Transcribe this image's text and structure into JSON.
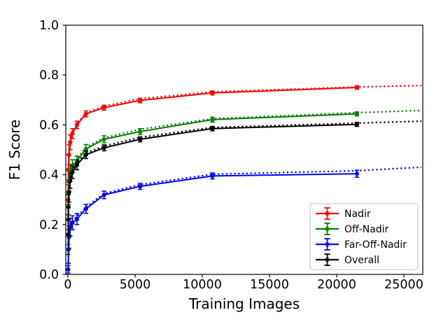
{
  "chart_data": {
    "type": "line",
    "title": "",
    "xlabel": "Training Images",
    "ylabel": "F1 Score",
    "grid": false,
    "legend_position": "lower right",
    "xlim": [
      0,
      26400
    ],
    "ylim": [
      0.0,
      1.0
    ],
    "x_ticks": [
      0,
      5000,
      10000,
      15000,
      20000,
      25000
    ],
    "y_ticks": [
      0.0,
      0.2,
      0.4,
      0.6,
      0.8,
      1.0
    ],
    "x": [
      21,
      42,
      84,
      168,
      336,
      672,
      1344,
      2688,
      5376,
      10752,
      21504
    ],
    "fit_x": [
      21,
      42,
      84,
      168,
      336,
      672,
      1344,
      2688,
      5376,
      10752,
      21504,
      26300
    ],
    "series": [
      {
        "name": "Nadir",
        "color": "#ff0000",
        "values": [
          0.3,
          0.42,
          0.48,
          0.53,
          0.565,
          0.6,
          0.644,
          0.669,
          0.698,
          0.728,
          0.75
        ],
        "errors": [
          0.12,
          0.06,
          0.04,
          0.03,
          0.02,
          0.015,
          0.012,
          0.01,
          0.009,
          0.008,
          0.007
        ],
        "fit_values": [
          0.34,
          0.44,
          0.49,
          0.538,
          0.572,
          0.606,
          0.648,
          0.675,
          0.705,
          0.733,
          0.752,
          0.758
        ]
      },
      {
        "name": "Off-Nadir",
        "color": "#008000",
        "values": [
          0.22,
          0.33,
          0.375,
          0.41,
          0.435,
          0.455,
          0.503,
          0.542,
          0.573,
          0.621,
          0.644
        ],
        "errors": [
          0.1,
          0.05,
          0.04,
          0.032,
          0.025,
          0.02,
          0.018,
          0.014,
          0.012,
          0.01,
          0.008
        ],
        "fit_values": [
          0.25,
          0.335,
          0.38,
          0.414,
          0.441,
          0.465,
          0.51,
          0.548,
          0.582,
          0.625,
          0.649,
          0.658
        ]
      },
      {
        "name": "Far-Off-Nadir",
        "color": "#0000ff",
        "values": [
          0.02,
          0.1,
          0.15,
          0.19,
          0.207,
          0.222,
          0.263,
          0.319,
          0.353,
          0.395,
          0.404
        ],
        "errors": [
          0.015,
          0.055,
          0.045,
          0.035,
          0.028,
          0.022,
          0.018,
          0.015,
          0.012,
          0.012,
          0.014
        ],
        "fit_values": [
          0.035,
          0.105,
          0.155,
          0.196,
          0.215,
          0.232,
          0.27,
          0.325,
          0.36,
          0.402,
          0.416,
          0.43
        ]
      },
      {
        "name": "Overall",
        "color": "#000000",
        "values": [
          0.16,
          0.27,
          0.33,
          0.375,
          0.41,
          0.44,
          0.48,
          0.508,
          0.542,
          0.585,
          0.602
        ],
        "errors": [
          0.08,
          0.05,
          0.04,
          0.03,
          0.025,
          0.02,
          0.015,
          0.012,
          0.01,
          0.009,
          0.008
        ],
        "fit_values": [
          0.2,
          0.28,
          0.34,
          0.383,
          0.417,
          0.448,
          0.487,
          0.515,
          0.55,
          0.59,
          0.607,
          0.615
        ]
      }
    ]
  }
}
